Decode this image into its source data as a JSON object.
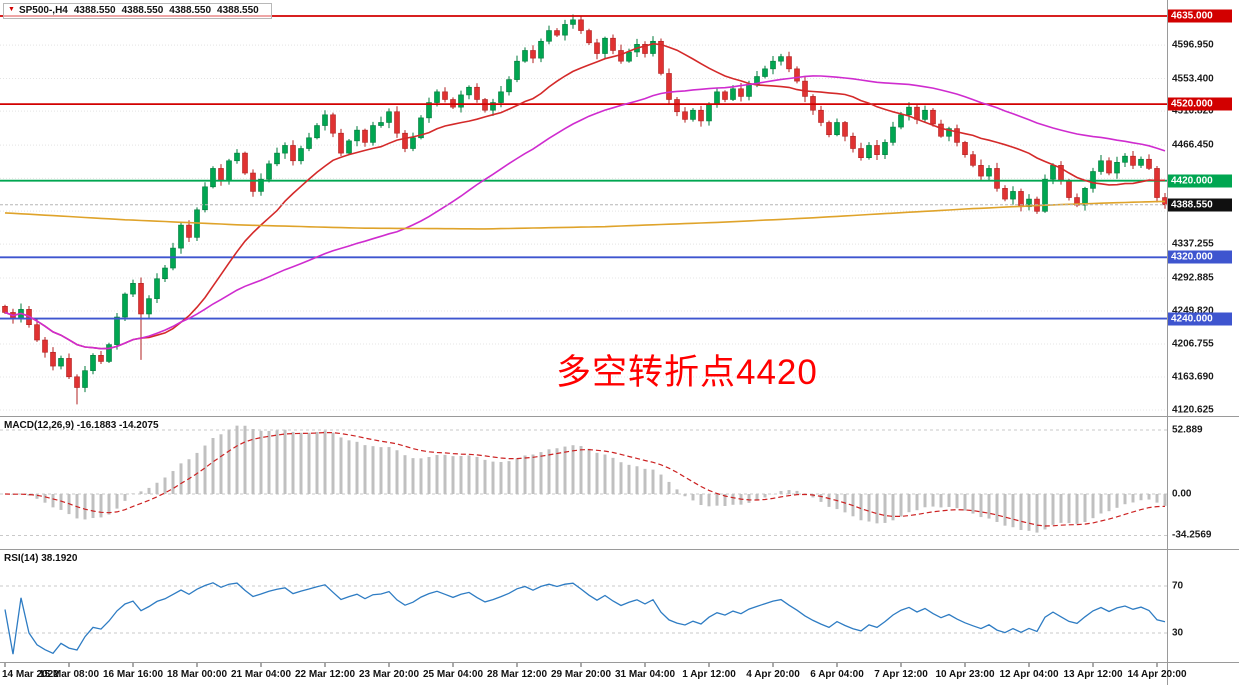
{
  "symbol_bar": {
    "symbol": "SP500-,H4",
    "open": "4388.550",
    "high": "4388.550",
    "low": "4388.550",
    "close": "4388.550"
  },
  "annotation": {
    "text": "多空转折点4420",
    "color": "#ff0000"
  },
  "main_axis": {
    "labels": [
      {
        "text": "4596.950",
        "price": 4596.95
      },
      {
        "text": "4553.400",
        "price": 4553.4
      },
      {
        "text": "4510.820",
        "price": 4510.82
      },
      {
        "text": "4466.450",
        "price": 4466.45
      },
      {
        "text": "4337.255",
        "price": 4337.255
      },
      {
        "text": "4292.885",
        "price": 4292.885
      },
      {
        "text": "4249.820",
        "price": 4249.82
      },
      {
        "text": "4206.755",
        "price": 4206.755
      },
      {
        "text": "4163.690",
        "price": 4163.69
      },
      {
        "text": "4120.625",
        "price": 4120.625
      }
    ],
    "badges": [
      {
        "text": "4635.000",
        "price": 4635.0,
        "color": "#d20000",
        "name": "resistance-badge-4635"
      },
      {
        "text": "4520.000",
        "price": 4520.0,
        "color": "#d20000",
        "name": "resistance-badge-4520"
      },
      {
        "text": "4420.000",
        "price": 4420.0,
        "color": "#00a651",
        "name": "pivot-badge-4420"
      },
      {
        "text": "4388.550",
        "price": 4388.55,
        "color": "#101010",
        "name": "current-price-badge"
      },
      {
        "text": "4320.000",
        "price": 4320.0,
        "color": "#3e55cf",
        "name": "support-badge-4320"
      },
      {
        "text": "4240.000",
        "price": 4240.0,
        "color": "#3e55cf",
        "name": "support-badge-4240"
      }
    ]
  },
  "macd_panel": {
    "label": "MACD(12,26,9) -16.1883 -14.2075",
    "axis": [
      {
        "text": "52.889",
        "v": 52.889
      },
      {
        "text": "0.00",
        "v": 0
      },
      {
        "text": "-34.2569",
        "v": -34.2569
      }
    ]
  },
  "rsi_panel": {
    "label": "RSI(14) 38.1920",
    "axis": [
      {
        "text": "70",
        "v": 70
      },
      {
        "text": "30",
        "v": 30
      }
    ]
  },
  "time_axis": {
    "labels": [
      "14 Mar 2022",
      "15 Mar 08:00",
      "16 Mar 16:00",
      "18 Mar 00:00",
      "21 Mar 04:00",
      "22 Mar 12:00",
      "23 Mar 20:00",
      "25 Mar 04:00",
      "28 Mar 12:00",
      "29 Mar 20:00",
      "31 Mar 04:00",
      "1 Apr 12:00",
      "4 Apr 20:00",
      "6 Apr 04:00",
      "7 Apr 12:00",
      "10 Apr 23:00",
      "12 Apr 04:00",
      "13 Apr 12:00",
      "14 Apr 20:00"
    ]
  },
  "colors": {
    "grid": "#e4e4e4",
    "up": "#00a651",
    "up_stroke": "#007a3b",
    "down": "#e03232",
    "down_stroke": "#b02020",
    "ma_fast": "#d42a2a",
    "ma_mid": "#cf2ccf",
    "ma_long": "#dfa32a",
    "hline_red": "#d20000",
    "hline_green": "#00a651",
    "hline_blue": "#3e55cf",
    "macd_hist": "#c0c0c0",
    "macd_signal": "#cc2222",
    "rsi_line": "#2e7cc3",
    "level_dash": "#c9c9c9",
    "separator": "#9a9a9a",
    "axis_text": "#1a1a1a",
    "current_dash": "#b5b5b5"
  },
  "chart_data": {
    "type": "candlestick",
    "title": "SP500- H4",
    "timeframe": "H4",
    "x_labels": [
      "14 Mar 2022",
      "15 Mar 08:00",
      "16 Mar 16:00",
      "18 Mar 00:00",
      "21 Mar 04:00",
      "22 Mar 12:00",
      "23 Mar 20:00",
      "25 Mar 04:00",
      "28 Mar 12:00",
      "29 Mar 20:00",
      "31 Mar 04:00",
      "1 Apr 12:00",
      "4 Apr 20:00",
      "6 Apr 04:00",
      "7 Apr 12:00",
      "10 Apr 23:00",
      "12 Apr 04:00",
      "13 Apr 12:00",
      "14 Apr 20:00"
    ],
    "bars_per_label": 8,
    "first_open": 4256,
    "closes": [
      4248,
      4240,
      4252,
      4232,
      4212,
      4196,
      4178,
      4188,
      4164,
      4150,
      4172,
      4192,
      4184,
      4206,
      4242,
      4272,
      4286,
      4246,
      4266,
      4292,
      4306,
      4332,
      4362,
      4346,
      4382,
      4412,
      4436,
      4420,
      4446,
      4456,
      4430,
      4406,
      4422,
      4442,
      4456,
      4466,
      4446,
      4462,
      4476,
      4492,
      4506,
      4482,
      4456,
      4472,
      4486,
      4470,
      4492,
      4496,
      4510,
      4482,
      4462,
      4476,
      4502,
      4522,
      4536,
      4526,
      4516,
      4532,
      4542,
      4526,
      4512,
      4522,
      4536,
      4552,
      4576,
      4590,
      4580,
      4602,
      4616,
      4610,
      4624,
      4630,
      4616,
      4600,
      4586,
      4606,
      4590,
      4576,
      4588,
      4598,
      4586,
      4602,
      4560,
      4526,
      4510,
      4500,
      4512,
      4498,
      4520,
      4536,
      4526,
      4540,
      4530,
      4546,
      4556,
      4566,
      4576,
      4582,
      4566,
      4550,
      4530,
      4512,
      4496,
      4480,
      4496,
      4478,
      4462,
      4450,
      4466,
      4454,
      4470,
      4490,
      4506,
      4516,
      4500,
      4512,
      4494,
      4478,
      4488,
      4470,
      4454,
      4440,
      4426,
      4436,
      4410,
      4396,
      4406,
      4386,
      4396,
      4380,
      4422,
      4440,
      4420,
      4398,
      4388,
      4410,
      4432,
      4446,
      4430,
      4444,
      4452,
      4440,
      4448,
      4436,
      4398,
      4388.55
    ],
    "wick_overrides": {
      "high": {
        "71": 4637
      },
      "low": {
        "9": 4128,
        "17": 4186
      }
    },
    "hlines": [
      {
        "price": 4635.0,
        "color": "#d20000"
      },
      {
        "price": 4520.0,
        "color": "#d20000"
      },
      {
        "price": 4420.0,
        "color": "#00a651"
      },
      {
        "price": 4320.0,
        "color": "#3e55cf"
      },
      {
        "price": 4240.0,
        "color": "#3e55cf"
      }
    ],
    "gridline_prices": [
      4596.95,
      4553.4,
      4510.82,
      4466.45,
      4423.085,
      4380.32,
      4337.255,
      4292.885,
      4249.82,
      4206.755,
      4163.69,
      4120.625
    ],
    "current_price": 4388.55,
    "price_axis_range": [
      4120.625,
      4635.0
    ],
    "overlays": [
      {
        "name": "ma-fast-red",
        "type": "sma",
        "period": 18,
        "color": "#d42a2a"
      },
      {
        "name": "ma-mid-magenta",
        "type": "sma",
        "period": 50,
        "color": "#cf2ccf"
      },
      {
        "name": "ma-long-orange",
        "type": "points",
        "color": "#dfa32a",
        "points": [
          [
            0,
            4378
          ],
          [
            15,
            4369
          ],
          [
            30,
            4362
          ],
          [
            45,
            4358
          ],
          [
            60,
            4357
          ],
          [
            75,
            4360
          ],
          [
            90,
            4366
          ],
          [
            100,
            4371
          ],
          [
            110,
            4377
          ],
          [
            120,
            4383
          ],
          [
            130,
            4388
          ],
          [
            138,
            4391
          ],
          [
            145,
            4393
          ]
        ]
      }
    ],
    "indicators": {
      "macd": {
        "fast": 12,
        "slow": 26,
        "signal": 9,
        "value": -16.1883,
        "signal_value": -14.2075,
        "axis_range": [
          -34.2569,
          52.889
        ]
      },
      "rsi": {
        "period": 14,
        "value": 38.192,
        "levels": [
          70,
          30
        ]
      }
    }
  }
}
